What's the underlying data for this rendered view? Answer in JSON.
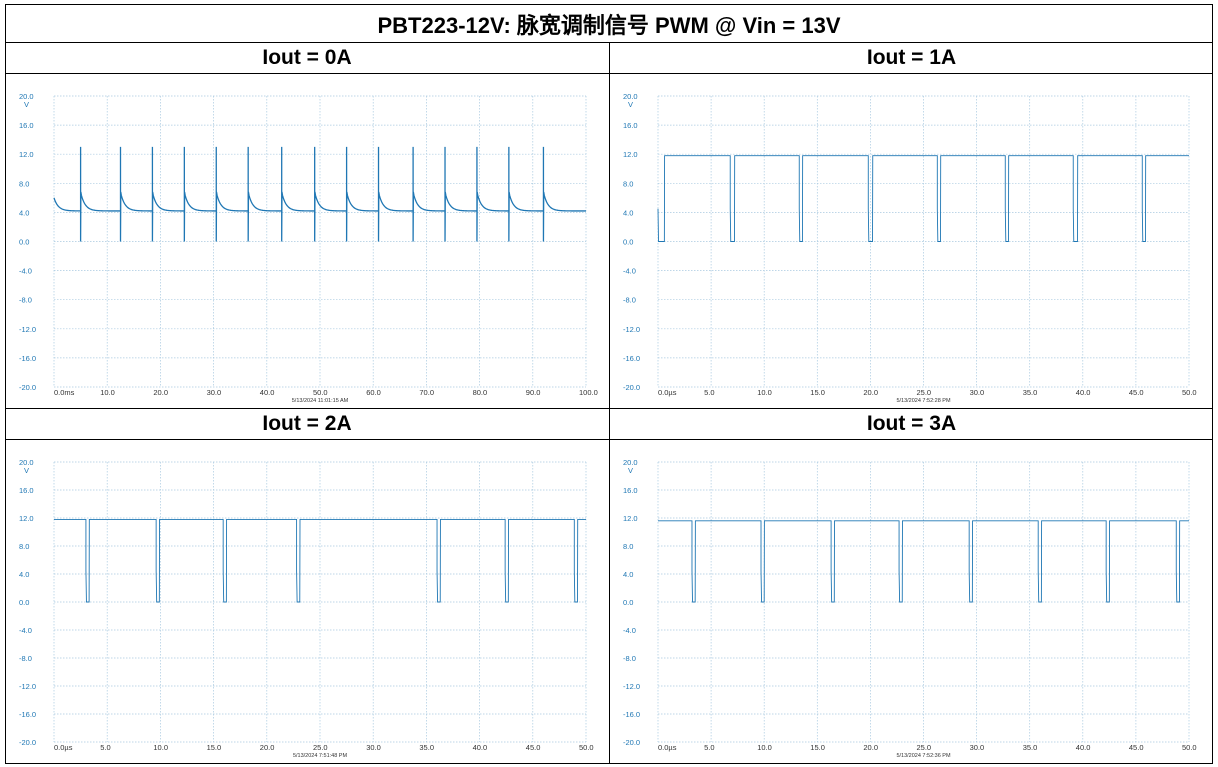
{
  "title": "PBT223-12V: 脉宽调制信号 PWM @ Vin = 13V",
  "panels": [
    {
      "label": "Iout = 0A",
      "timestamp": "5/13/2024 11:01:15 AM"
    },
    {
      "label": "Iout = 1A",
      "timestamp": "5/13/2024 7:52:28 PM"
    },
    {
      "label": "Iout = 2A",
      "timestamp": "5/13/2024 7:51:48 PM"
    },
    {
      "label": "Iout = 3A",
      "timestamp": "5/13/2024 7:52:36 PM"
    }
  ],
  "colors": {
    "trace": "#1f77b4",
    "grid": "#a9c9e0",
    "axis_text": "#1f77b4",
    "tick_text": "#333333"
  },
  "chart_data": [
    {
      "type": "line",
      "title": "Iout = 0A",
      "y_unit": "V",
      "ylim": [
        -20,
        20
      ],
      "y_ticks": [
        "20.0",
        "16.0",
        "12.0",
        "8.0",
        "4.0",
        "0.0",
        "-4.0",
        "-8.0",
        "-12.0",
        "-16.0",
        "-20.0"
      ],
      "xlim": [
        0,
        100
      ],
      "x_ticks": [
        "0.0ms",
        "10.0",
        "20.0",
        "30.0",
        "40.0",
        "50.0",
        "60.0",
        "70.0",
        "80.0",
        "90.0",
        "100.0"
      ],
      "grid": true,
      "waveform": "decay",
      "baseline_v": 4.2,
      "spike_high_v": 13.0,
      "spike_low_v": 0.0,
      "overshoot_v": 6.8,
      "start_v": 6.0,
      "spike_times": [
        5.0,
        12.5,
        18.5,
        24.5,
        30.5,
        36.5,
        42.8,
        49.0,
        55.0,
        61.0,
        67.5,
        73.5,
        79.5,
        85.5,
        92.0
      ]
    },
    {
      "type": "line",
      "title": "Iout = 1A",
      "y_unit": "V",
      "ylim": [
        -20,
        20
      ],
      "y_ticks": [
        "20.0",
        "16.0",
        "12.0",
        "8.0",
        "4.0",
        "0.0",
        "-4.0",
        "-8.0",
        "-12.0",
        "-16.0",
        "-20.0"
      ],
      "xlim": [
        0,
        50
      ],
      "x_ticks": [
        "0.0µs",
        "5.0",
        "10.0",
        "15.0",
        "20.0",
        "25.0",
        "30.0",
        "35.0",
        "40.0",
        "45.0",
        "50.0"
      ],
      "grid": true,
      "waveform": "pwm",
      "high_v": 11.8,
      "low_v": 0.0,
      "pulses": [
        [
          0.0,
          0.6
        ],
        [
          6.8,
          7.2
        ],
        [
          13.3,
          13.6
        ],
        [
          19.8,
          20.2
        ],
        [
          26.3,
          26.6
        ],
        [
          32.7,
          33.0
        ],
        [
          39.1,
          39.5
        ],
        [
          45.6,
          45.9
        ]
      ]
    },
    {
      "type": "line",
      "title": "Iout = 2A",
      "y_unit": "V",
      "ylim": [
        -20,
        20
      ],
      "y_ticks": [
        "20.0",
        "16.0",
        "12.0",
        "8.0",
        "4.0",
        "0.0",
        "-4.0",
        "-8.0",
        "-12.0",
        "-16.0",
        "-20.0"
      ],
      "xlim": [
        0,
        50
      ],
      "x_ticks": [
        "0.0µs",
        "5.0",
        "10.0",
        "15.0",
        "20.0",
        "25.0",
        "30.0",
        "35.0",
        "40.0",
        "45.0",
        "50.0"
      ],
      "grid": true,
      "waveform": "pwm",
      "high_v": 11.8,
      "low_v": 0.0,
      "pulses": [
        [
          3.0,
          3.3
        ],
        [
          9.6,
          9.9
        ],
        [
          15.9,
          16.2
        ],
        [
          22.8,
          23.1
        ],
        [
          36.0,
          36.3
        ],
        [
          42.4,
          42.7
        ],
        [
          48.9,
          49.2
        ]
      ]
    },
    {
      "type": "line",
      "title": "Iout = 3A",
      "y_unit": "V",
      "ylim": [
        -20,
        20
      ],
      "y_ticks": [
        "20.0",
        "16.0",
        "12.0",
        "8.0",
        "4.0",
        "0.0",
        "-4.0",
        "-8.0",
        "-12.0",
        "-16.0",
        "-20.0"
      ],
      "xlim": [
        0,
        50
      ],
      "x_ticks": [
        "0.0µs",
        "5.0",
        "10.0",
        "15.0",
        "20.0",
        "25.0",
        "30.0",
        "35.0",
        "40.0",
        "45.0",
        "50.0"
      ],
      "grid": true,
      "waveform": "pwm",
      "high_v": 11.6,
      "low_v": 0.0,
      "pulses": [
        [
          3.2,
          3.5
        ],
        [
          9.7,
          10.0
        ],
        [
          16.3,
          16.6
        ],
        [
          22.7,
          23.0
        ],
        [
          29.3,
          29.6
        ],
        [
          35.8,
          36.1
        ],
        [
          42.2,
          42.5
        ],
        [
          48.8,
          49.1
        ]
      ]
    }
  ]
}
